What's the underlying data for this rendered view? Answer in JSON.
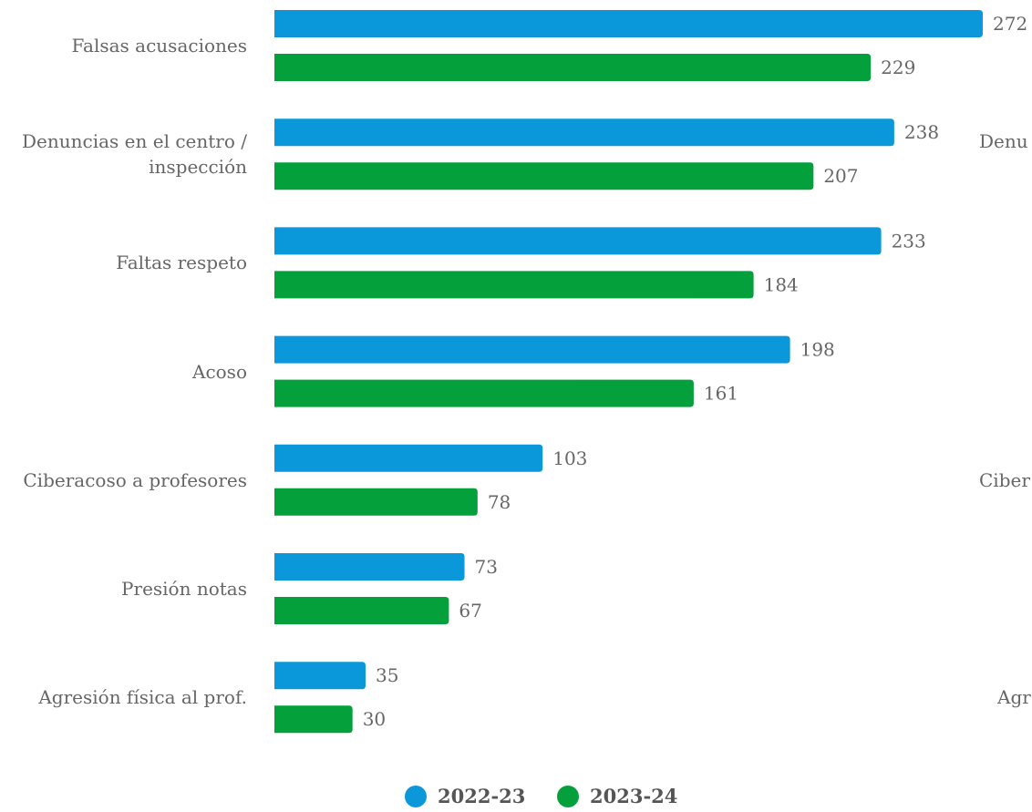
{
  "chart_data": {
    "type": "bar",
    "orientation": "horizontal",
    "categories": [
      "Falsas acusaciones",
      "Denuncias en el centro / inspección",
      "Faltas respeto",
      "Acoso",
      "Ciberacoso a profesores",
      "Presión notas",
      "Agresión física al prof."
    ],
    "series": [
      {
        "name": "2022-23",
        "color": "#0a98da",
        "values": [
          272,
          238,
          233,
          198,
          103,
          73,
          35
        ]
      },
      {
        "name": "2023-24",
        "color": "#04a03b",
        "values": [
          229,
          207,
          184,
          161,
          78,
          67,
          30
        ]
      }
    ],
    "clipped_labels": [
      "Denu",
      "Ciber",
      "Agr"
    ],
    "legend_position": "bottom-center",
    "grid": false
  }
}
